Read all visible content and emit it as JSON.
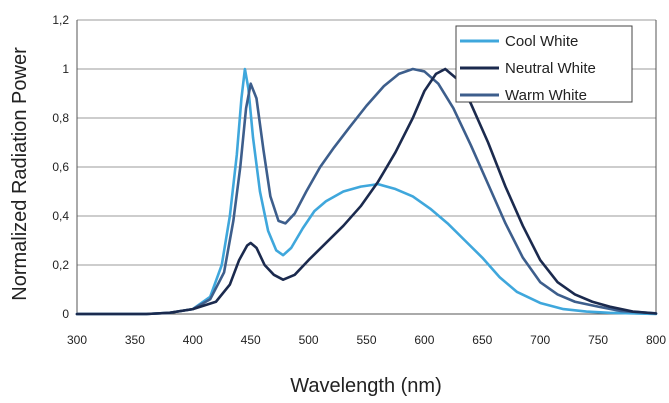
{
  "chart_data": {
    "type": "line",
    "title": "",
    "xlabel": "Wavelength (nm)",
    "ylabel": "Normalized Radiation Power",
    "xlim": [
      300,
      800
    ],
    "ylim": [
      0,
      1.2
    ],
    "x_ticks": [
      300,
      350,
      400,
      450,
      500,
      550,
      600,
      650,
      700,
      750,
      800
    ],
    "y_ticks": [
      0,
      0.2,
      0.4,
      0.6,
      0.8,
      1,
      1.2
    ],
    "y_tick_labels": [
      "0",
      "0,2",
      "0,4",
      "0,6",
      "0,8",
      "1",
      "1,2"
    ],
    "grid": "horizontal",
    "legend_position": "top-right",
    "series": [
      {
        "name": "Cool White",
        "color": "#3fa7dc",
        "points": [
          [
            300,
            0
          ],
          [
            360,
            0
          ],
          [
            380,
            0.005
          ],
          [
            400,
            0.02
          ],
          [
            415,
            0.07
          ],
          [
            425,
            0.2
          ],
          [
            432,
            0.4
          ],
          [
            438,
            0.65
          ],
          [
            442,
            0.88
          ],
          [
            445,
            1.0
          ],
          [
            448,
            0.92
          ],
          [
            452,
            0.72
          ],
          [
            458,
            0.5
          ],
          [
            465,
            0.34
          ],
          [
            472,
            0.26
          ],
          [
            478,
            0.24
          ],
          [
            485,
            0.27
          ],
          [
            495,
            0.35
          ],
          [
            505,
            0.42
          ],
          [
            515,
            0.46
          ],
          [
            530,
            0.5
          ],
          [
            545,
            0.52
          ],
          [
            560,
            0.53
          ],
          [
            575,
            0.51
          ],
          [
            590,
            0.48
          ],
          [
            605,
            0.43
          ],
          [
            620,
            0.37
          ],
          [
            635,
            0.3
          ],
          [
            650,
            0.23
          ],
          [
            665,
            0.15
          ],
          [
            680,
            0.09
          ],
          [
            700,
            0.045
          ],
          [
            720,
            0.02
          ],
          [
            740,
            0.01
          ],
          [
            760,
            0.005
          ],
          [
            800,
            0
          ]
        ]
      },
      {
        "name": "Neutral White",
        "color": "#1b2a4e",
        "points": [
          [
            300,
            0
          ],
          [
            360,
            0
          ],
          [
            380,
            0.005
          ],
          [
            400,
            0.02
          ],
          [
            420,
            0.05
          ],
          [
            432,
            0.12
          ],
          [
            440,
            0.22
          ],
          [
            447,
            0.28
          ],
          [
            450,
            0.29
          ],
          [
            455,
            0.27
          ],
          [
            462,
            0.2
          ],
          [
            470,
            0.16
          ],
          [
            478,
            0.14
          ],
          [
            488,
            0.16
          ],
          [
            500,
            0.22
          ],
          [
            515,
            0.29
          ],
          [
            530,
            0.36
          ],
          [
            545,
            0.44
          ],
          [
            560,
            0.54
          ],
          [
            575,
            0.66
          ],
          [
            590,
            0.8
          ],
          [
            600,
            0.91
          ],
          [
            610,
            0.98
          ],
          [
            618,
            1.0
          ],
          [
            628,
            0.96
          ],
          [
            640,
            0.86
          ],
          [
            655,
            0.7
          ],
          [
            670,
            0.52
          ],
          [
            685,
            0.36
          ],
          [
            700,
            0.22
          ],
          [
            715,
            0.13
          ],
          [
            730,
            0.08
          ],
          [
            745,
            0.05
          ],
          [
            760,
            0.03
          ],
          [
            780,
            0.01
          ],
          [
            800,
            0.002
          ]
        ]
      },
      {
        "name": "Warm White",
        "color": "#3d5e8c",
        "points": [
          [
            300,
            0
          ],
          [
            360,
            0
          ],
          [
            380,
            0.005
          ],
          [
            400,
            0.02
          ],
          [
            415,
            0.06
          ],
          [
            427,
            0.17
          ],
          [
            435,
            0.38
          ],
          [
            441,
            0.6
          ],
          [
            446,
            0.84
          ],
          [
            450,
            0.94
          ],
          [
            455,
            0.88
          ],
          [
            461,
            0.67
          ],
          [
            467,
            0.48
          ],
          [
            474,
            0.38
          ],
          [
            480,
            0.37
          ],
          [
            488,
            0.41
          ],
          [
            498,
            0.5
          ],
          [
            510,
            0.6
          ],
          [
            522,
            0.68
          ],
          [
            535,
            0.76
          ],
          [
            550,
            0.85
          ],
          [
            565,
            0.93
          ],
          [
            578,
            0.98
          ],
          [
            590,
            1.0
          ],
          [
            600,
            0.99
          ],
          [
            612,
            0.94
          ],
          [
            625,
            0.84
          ],
          [
            640,
            0.69
          ],
          [
            655,
            0.53
          ],
          [
            670,
            0.37
          ],
          [
            685,
            0.23
          ],
          [
            700,
            0.13
          ],
          [
            715,
            0.08
          ],
          [
            730,
            0.05
          ],
          [
            750,
            0.03
          ],
          [
            770,
            0.012
          ],
          [
            800,
            0.003
          ]
        ]
      }
    ]
  }
}
